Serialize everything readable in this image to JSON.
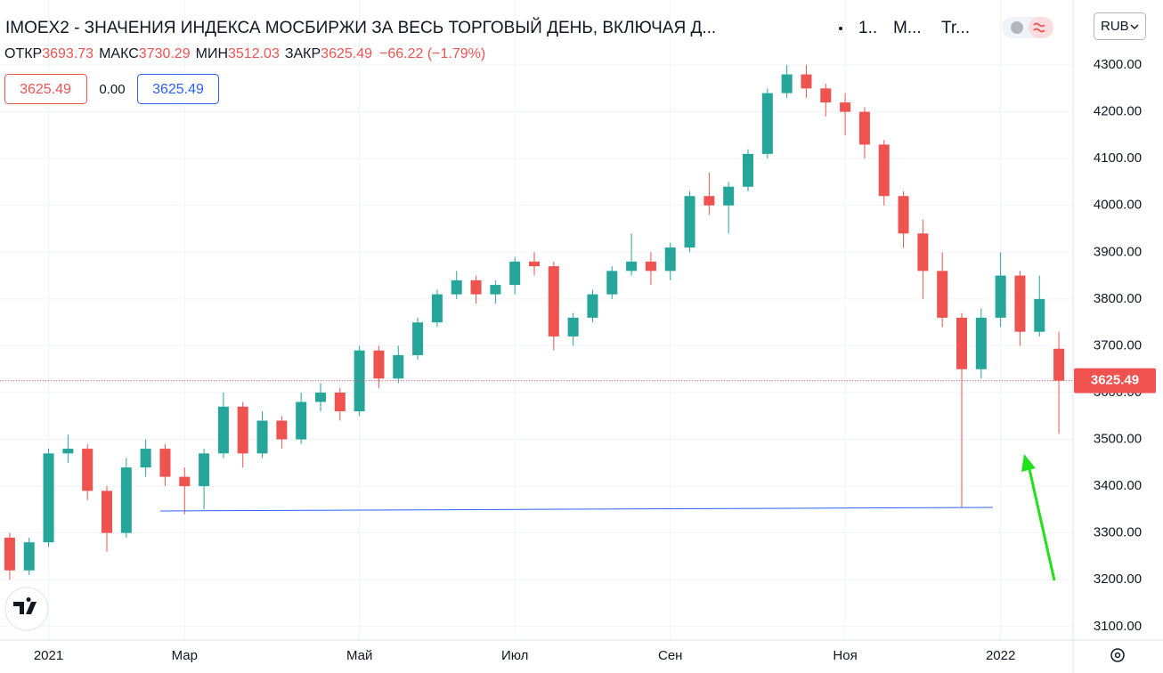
{
  "header": {
    "title": "IMOEX2 - ЗНАЧЕНИЯ ИНДЕКСА МОСБИРЖИ ЗА ВЕСЬ ТОРГОВЫЙ ДЕНЬ, ВКЛЮЧАЯ Д...",
    "interval": "1..",
    "exchange": "М...",
    "source": "Tr...",
    "currency": "RUB",
    "open_label": "ОТКР",
    "high_label": "МАКС",
    "low_label": "МИН",
    "close_label": "ЗАКР",
    "change": "−66.22 (−1.79%)",
    "spread": "0.00"
  },
  "chart_data": {
    "type": "candlestick",
    "categories": [
      null,
      null,
      "2021",
      null,
      null,
      null,
      null,
      null,
      null,
      "Мар",
      null,
      null,
      null,
      null,
      null,
      null,
      null,
      null,
      "Май",
      null,
      null,
      null,
      null,
      null,
      null,
      null,
      "Июл",
      null,
      null,
      null,
      null,
      null,
      null,
      null,
      "Сен",
      null,
      null,
      null,
      null,
      null,
      null,
      null,
      null,
      "Ноя",
      null,
      null,
      null,
      null,
      null,
      null,
      null,
      "2022",
      null,
      null,
      null
    ],
    "open": [
      3290,
      3220,
      3280,
      3470,
      3480,
      3390,
      3300,
      3440,
      3480,
      3420,
      3400,
      3470,
      3570,
      3470,
      3540,
      3500,
      3580,
      3600,
      3560,
      3690,
      3630,
      3680,
      3750,
      3810,
      3840,
      3810,
      3830,
      3880,
      3870,
      3720,
      3760,
      3810,
      3860,
      3880,
      3860,
      3910,
      4020,
      4000,
      4040,
      4110,
      4240,
      4280,
      4250,
      4220,
      4200,
      4130,
      4020,
      3940,
      3860,
      3760,
      3650,
      3760,
      3850,
      3730,
      3693.73
    ],
    "high": [
      3300,
      3290,
      3480,
      3510,
      3490,
      3400,
      3460,
      3500,
      3490,
      3440,
      3480,
      3600,
      3580,
      3560,
      3550,
      3600,
      3620,
      3610,
      3700,
      3700,
      3700,
      3760,
      3820,
      3860,
      3850,
      3840,
      3890,
      3900,
      3880,
      3770,
      3820,
      3870,
      3940,
      3900,
      3920,
      4030,
      4070,
      4050,
      4120,
      4250,
      4300,
      4300,
      4260,
      4240,
      4210,
      4140,
      4030,
      3970,
      3900,
      3770,
      3780,
      3900,
      3860,
      3850,
      3730.29
    ],
    "low": [
      3200,
      3210,
      3270,
      3450,
      3370,
      3260,
      3290,
      3420,
      3400,
      3340,
      3350,
      3460,
      3440,
      3460,
      3480,
      3490,
      3560,
      3540,
      3550,
      3610,
      3620,
      3670,
      3740,
      3800,
      3790,
      3790,
      3810,
      3850,
      3690,
      3700,
      3750,
      3800,
      3850,
      3830,
      3840,
      3900,
      3980,
      3940,
      4030,
      4100,
      4230,
      4230,
      4190,
      4150,
      4100,
      4000,
      3910,
      3800,
      3740,
      3355,
      3630,
      3740,
      3700,
      3720,
      3512.03
    ],
    "close": [
      3220,
      3280,
      3470,
      3480,
      3390,
      3300,
      3440,
      3480,
      3420,
      3400,
      3470,
      3570,
      3470,
      3540,
      3500,
      3580,
      3600,
      3560,
      3690,
      3630,
      3680,
      3750,
      3810,
      3840,
      3810,
      3830,
      3880,
      3870,
      3720,
      3760,
      3810,
      3860,
      3880,
      3860,
      3910,
      4020,
      4000,
      4040,
      4110,
      4240,
      4280,
      4250,
      4220,
      4200,
      4130,
      4020,
      3940,
      3860,
      3760,
      3650,
      3760,
      3850,
      3730,
      3800,
      3625.49
    ],
    "up_color": "#26a69a",
    "down_color": "#ef5350",
    "ylim": [
      3073,
      4439
    ],
    "yticks": [
      {
        "value": 3100,
        "label": "3100.00"
      },
      {
        "value": 3200,
        "label": "3200.00"
      },
      {
        "value": 3300,
        "label": "3300.00"
      },
      {
        "value": 3400,
        "label": "3400.00"
      },
      {
        "value": 3500,
        "label": "3500.00"
      },
      {
        "value": 3600,
        "label": "3600.00"
      },
      {
        "value": 3700,
        "label": "3700.00"
      },
      {
        "value": 3800,
        "label": "3800.00"
      },
      {
        "value": 3900,
        "label": "3900.00"
      },
      {
        "value": 4000,
        "label": "4000.00"
      },
      {
        "value": 4100,
        "label": "4100.00"
      },
      {
        "value": 4200,
        "label": "4200.00"
      },
      {
        "value": 4300,
        "label": "4300.00"
      }
    ],
    "grid": true
  }
}
